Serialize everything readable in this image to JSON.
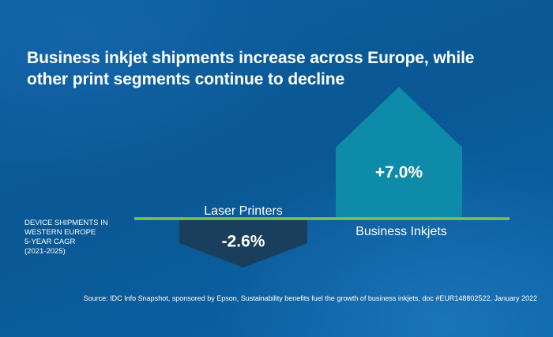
{
  "title": "Business inkjet shipments increase across Europe, while other print segments continue to decline",
  "side_label": {
    "line1": "DEVICE SHIPMENTS IN",
    "line2": "WESTERN EUROPE",
    "line3": "5-YEAR CAGR",
    "line4": "(2021-2025)"
  },
  "source": "Source: IDC Info Snapshot, sponsored by Epson, Sustainability benefits fuel the growth of business inkjets, doc #EUR148802522, January 2022",
  "colors": {
    "background": "#0a5a9a",
    "baseline": "#7cc653",
    "laser_arrow": "#1a3f5c",
    "inkjet_arrow": "#0e8ba8",
    "text": "#ffffff"
  },
  "chart_data": {
    "type": "bar",
    "categories": [
      "Laser Printers",
      "Business Inkjets"
    ],
    "values": [
      -2.6,
      7.0
    ],
    "value_labels": [
      "-2.6%",
      "+7.0%"
    ],
    "ylim": [
      -3.5,
      7.5
    ],
    "unit": "%",
    "grid": false,
    "legend": "none"
  }
}
